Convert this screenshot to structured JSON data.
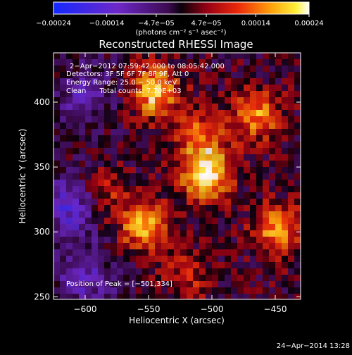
{
  "chart_data": {
    "type": "heatmap",
    "title": "Reconstructed RHESSI Image",
    "xlabel": "Heliocentric X (arcsec)",
    "ylabel": "Heliocentric Y (arcsec)",
    "xlim": [
      -625,
      -430
    ],
    "ylim": [
      248,
      438
    ],
    "xticks": [
      -600,
      -550,
      -500,
      -450
    ],
    "yticks": [
      250,
      300,
      350,
      400
    ],
    "xtick_labels": [
      "−600",
      "−550",
      "−500",
      "−450"
    ],
    "ytick_labels": [
      "250",
      "300",
      "350",
      "400"
    ],
    "colorbar": {
      "range": [
        -0.00024,
        0.00024
      ],
      "ticks": [
        -0.00024,
        -0.00014,
        -4.7e-05,
        4.7e-05,
        0.00014,
        0.00024
      ],
      "tick_labels": [
        "−0.00024",
        "−0.00014",
        "−4.7e−05",
        "4.7e−05",
        "0.00014",
        "0.00024"
      ],
      "unit_label": "(photons cm⁻² s⁻¹ asec⁻²)"
    },
    "annotations": {
      "time": "2−Apr−2012 07:59:42.000 to 08:05:42.000",
      "detectors": "Detectors: 3F 5F 6F 7F 8F 9F, Att 0",
      "energy": "Energy Range: 25.0 − 50.0 keV",
      "clean": "Clean      Total counts: 7.70E+03",
      "peak": "Position of Peak = [−501,334]"
    },
    "bright_regions": [
      {
        "x": -505,
        "y": 345,
        "value": 0.00024
      },
      {
        "x": -545,
        "y": 408,
        "value": 0.0002
      },
      {
        "x": -555,
        "y": 305,
        "value": 0.00018
      },
      {
        "x": -448,
        "y": 302,
        "value": 0.00017
      },
      {
        "x": -465,
        "y": 390,
        "value": 0.00016
      },
      {
        "x": -510,
        "y": 375,
        "value": 0.00012
      },
      {
        "x": -585,
        "y": 330,
        "value": 0.0001
      },
      {
        "x": -520,
        "y": 265,
        "value": 9e-05
      }
    ],
    "dim_regions": [
      {
        "x": -610,
        "y": 320,
        "value": -0.00014
      },
      {
        "x": -600,
        "y": 405,
        "value": -9e-05
      },
      {
        "x": -600,
        "y": 265,
        "value": -0.0001
      }
    ]
  },
  "footer": {
    "date": "24−Apr−2014 13:28"
  }
}
